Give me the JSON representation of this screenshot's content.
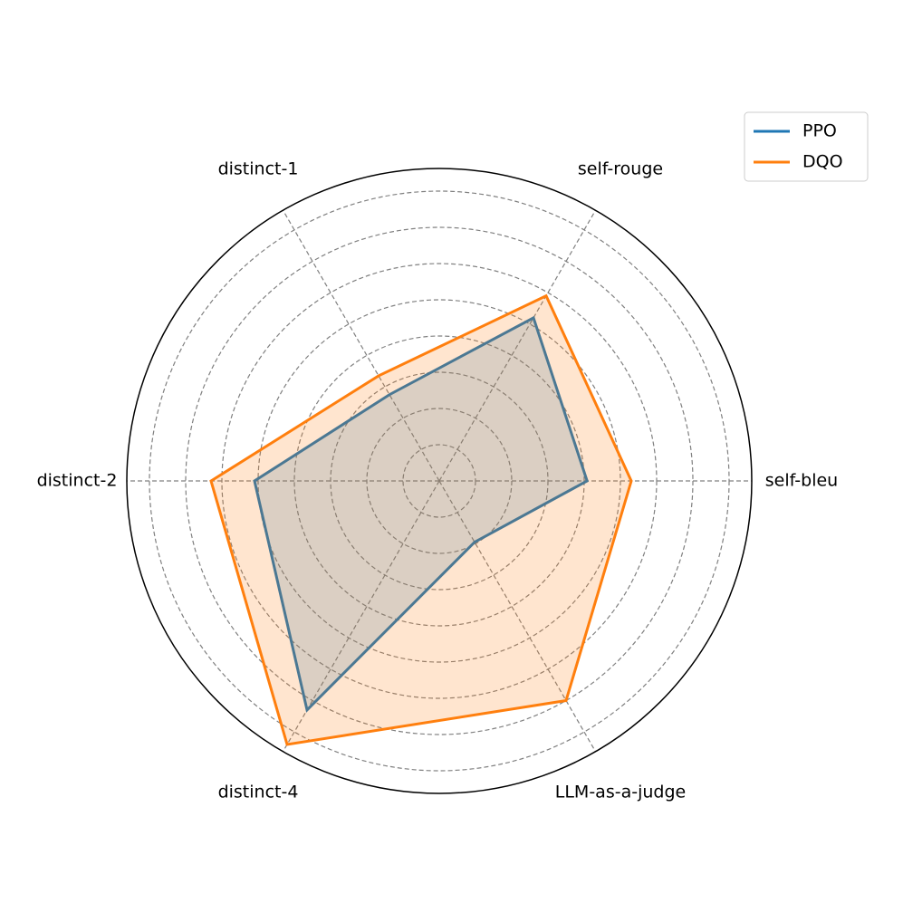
{
  "chart_data": {
    "type": "radar",
    "categories": [
      "self-bleu",
      "self-rouge",
      "distinct-1",
      "distinct-2",
      "distinct-4",
      "LLM-as-a-judge"
    ],
    "series": [
      {
        "name": "PPO",
        "color": "#1f77b4",
        "values": [
          4.08,
          5.2,
          2.75,
          5.1,
          7.3,
          1.95
        ]
      },
      {
        "name": "DQO",
        "color": "#ff7f0e",
        "values": [
          5.3,
          5.9,
          3.35,
          6.3,
          8.4,
          7.0
        ]
      }
    ],
    "ylim": [
      0,
      8.625
    ],
    "yticks": [
      1,
      2,
      3,
      4,
      5,
      6,
      7,
      8
    ],
    "grid": true,
    "legend": "upper right"
  }
}
